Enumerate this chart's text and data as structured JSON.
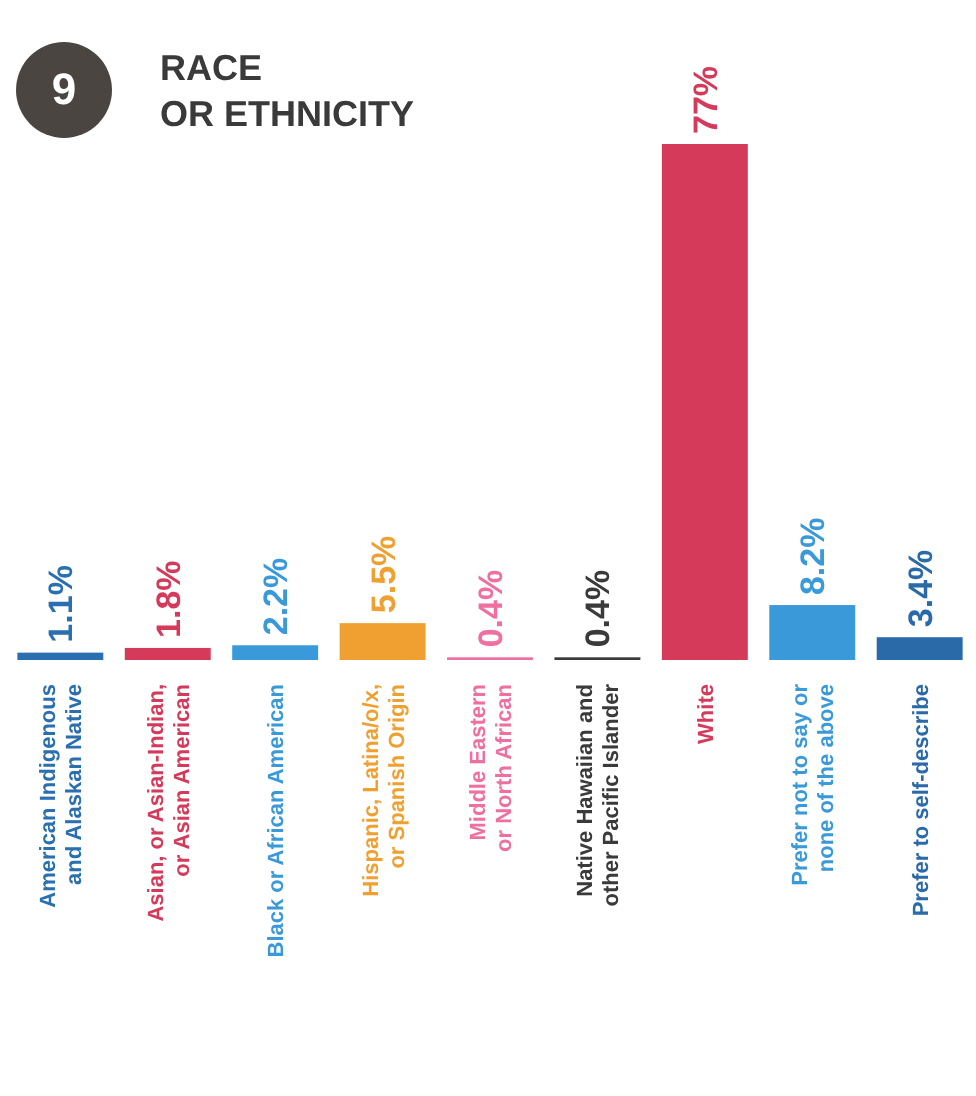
{
  "chart_data": {
    "type": "bar",
    "title": "RACE\nOR ETHNICITY",
    "annotations": [
      "9"
    ],
    "categories": [
      "American Indigenous and Alaskan Native",
      "Asian, or Asian-Indian, or Asian American",
      "Black or African American",
      "Hispanic, Latina/o/x, or Spanish Origin",
      "Middle Eastern or North African",
      "Native Hawaiian and other Pacific Islander",
      "White",
      "Prefer not to say or none of the above",
      "Prefer to self-describe"
    ],
    "values": [
      1.1,
      1.8,
      2.2,
      5.5,
      0.4,
      0.4,
      77,
      8.2,
      3.4
    ],
    "value_labels": [
      "1.1%",
      "1.8%",
      "2.2%",
      "5.5%",
      "0.4%",
      "0.4%",
      "77%",
      "8.2%",
      "3.4%"
    ],
    "colors": [
      "#2a6fb0",
      "#d63a5a",
      "#3a9ad9",
      "#f0a030",
      "#ef6fa0",
      "#3a3a3a",
      "#d63a5a",
      "#3a9ad9",
      "#2a6aa8"
    ],
    "data_labels": false
  }
}
